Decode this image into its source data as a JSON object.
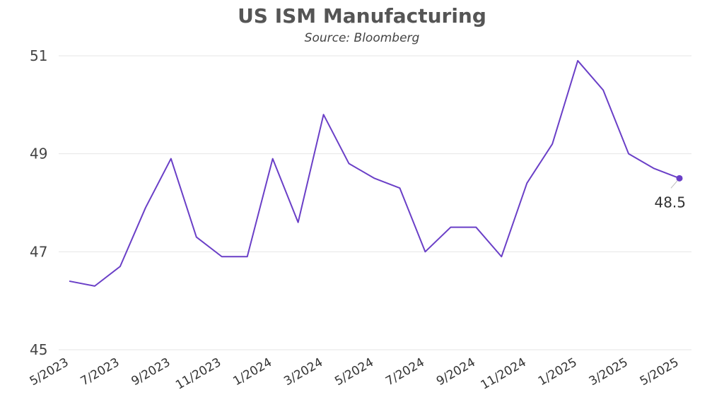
{
  "chart_data": {
    "type": "line",
    "title": "US ISM Manufacturing",
    "subtitle": "Source: Bloomberg",
    "xlabel": "",
    "ylabel": "",
    "x": [
      "5/2023",
      "6/2023",
      "7/2023",
      "8/2023",
      "9/2023",
      "10/2023",
      "11/2023",
      "12/2023",
      "1/2024",
      "2/2024",
      "3/2024",
      "4/2024",
      "5/2024",
      "6/2024",
      "7/2024",
      "8/2024",
      "9/2024",
      "10/2024",
      "11/2024",
      "12/2024",
      "1/2025",
      "2/2025",
      "3/2025",
      "4/2025",
      "5/2025"
    ],
    "x_tick_labels": [
      "5/2023",
      "7/2023",
      "9/2023",
      "11/2023",
      "1/2024",
      "3/2024",
      "5/2024",
      "7/2024",
      "9/2024",
      "11/2024",
      "1/2025",
      "3/2025",
      "5/2025"
    ],
    "series": [
      {
        "values": [
          46.4,
          46.3,
          46.7,
          47.9,
          48.9,
          47.3,
          46.9,
          46.9,
          48.9,
          47.6,
          49.8,
          48.8,
          48.5,
          48.3,
          47.0,
          47.5,
          47.5,
          46.9,
          48.4,
          49.2,
          50.9,
          50.3,
          49.0,
          48.7,
          48.5
        ],
        "color": "#6a3fc7"
      }
    ],
    "ylim": [
      45,
      51
    ],
    "y_ticks": [
      45,
      47,
      49,
      51
    ],
    "grid": true,
    "annotations": [
      {
        "x": "5/2025",
        "y": 48.5,
        "text": "48.5"
      }
    ]
  }
}
